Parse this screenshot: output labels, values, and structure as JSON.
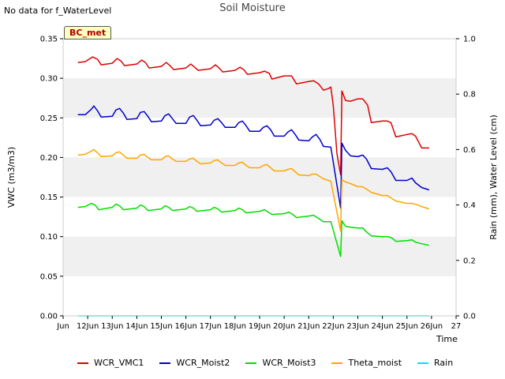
{
  "header": {
    "no_data_note": "No data for f_WaterLevel",
    "title": "Soil Moisture",
    "site_badge": "BC_met"
  },
  "chart_data": {
    "type": "line",
    "title": "Soil Moisture",
    "xlabel": "Time",
    "ylabel_left": "VWC (m3/m3)",
    "ylabel_right": "Rain (mm), Water Level (cm)",
    "ylim_left": [
      0,
      0.35
    ],
    "ylim_right": [
      0,
      1.0
    ],
    "xlim": [
      11,
      27
    ],
    "x_units": "day of June",
    "x_ticks": [
      11,
      12,
      13,
      14,
      15,
      16,
      17,
      18,
      19,
      20,
      21,
      22,
      23,
      24,
      25,
      26,
      27
    ],
    "x_tick_labels": [
      "Jun 11",
      "Jun 12",
      "Jun 13",
      "Jun 14",
      "Jun 15",
      "Jun 16",
      "Jun 17",
      "Jun 18",
      "Jun 19",
      "Jun 20",
      "Jun 21",
      "Jun 22",
      "Jun 23",
      "Jun 24",
      "Jun 25",
      "Jun 26",
      "Jun 27"
    ],
    "x_tick_display": [
      "Jun",
      "12Jun",
      "13Jun",
      "14Jun",
      "15Jun",
      "16Jun",
      "17Jun",
      "18Jun",
      "19Jun",
      "20Jun",
      "21Jun",
      "22Jun",
      "23Jun",
      "24Jun",
      "25Jun",
      "26Jun",
      "27"
    ],
    "y_ticks_left": [
      0.0,
      0.05,
      0.1,
      0.15,
      0.2,
      0.25,
      0.3,
      0.35
    ],
    "y_tick_labels_left": [
      "0.00",
      "0.05",
      "0.10",
      "0.15",
      "0.20",
      "0.25",
      "0.30",
      "0.35"
    ],
    "y_ticks_right": [
      0.0,
      0.2,
      0.4,
      0.6,
      0.8,
      1.0
    ],
    "y_tick_labels_right": [
      "0.0",
      "0.2",
      "0.4",
      "0.6",
      "0.8",
      "1.0"
    ],
    "grid_bands": true,
    "legend_position": "bottom-center",
    "series": [
      {
        "name": "WCR_VMC1",
        "color": "#dd0000",
        "axis": "left",
        "points": [
          [
            11.6,
            0.32
          ],
          [
            11.9,
            0.321
          ],
          [
            12.2,
            0.327
          ],
          [
            12.4,
            0.324
          ],
          [
            12.55,
            0.317
          ],
          [
            13.0,
            0.319
          ],
          [
            13.2,
            0.325
          ],
          [
            13.35,
            0.322
          ],
          [
            13.5,
            0.316
          ],
          [
            14.0,
            0.318
          ],
          [
            14.2,
            0.323
          ],
          [
            14.35,
            0.32
          ],
          [
            14.5,
            0.313
          ],
          [
            15.0,
            0.315
          ],
          [
            15.2,
            0.32
          ],
          [
            15.35,
            0.316
          ],
          [
            15.5,
            0.311
          ],
          [
            16.0,
            0.313
          ],
          [
            16.2,
            0.318
          ],
          [
            16.35,
            0.314
          ],
          [
            16.5,
            0.31
          ],
          [
            17.0,
            0.312
          ],
          [
            17.2,
            0.317
          ],
          [
            17.35,
            0.313
          ],
          [
            17.5,
            0.308
          ],
          [
            18.0,
            0.31
          ],
          [
            18.2,
            0.314
          ],
          [
            18.35,
            0.311
          ],
          [
            18.5,
            0.305
          ],
          [
            19.0,
            0.307
          ],
          [
            19.2,
            0.309
          ],
          [
            19.4,
            0.306
          ],
          [
            19.5,
            0.299
          ],
          [
            20.0,
            0.303
          ],
          [
            20.3,
            0.303
          ],
          [
            20.5,
            0.293
          ],
          [
            21.0,
            0.296
          ],
          [
            21.2,
            0.297
          ],
          [
            21.4,
            0.293
          ],
          [
            21.6,
            0.285
          ],
          [
            21.8,
            0.287
          ],
          [
            21.9,
            0.289
          ],
          [
            22.0,
            0.265
          ],
          [
            22.15,
            0.205
          ],
          [
            22.3,
            0.178
          ],
          [
            22.35,
            0.284
          ],
          [
            22.5,
            0.272
          ],
          [
            22.7,
            0.271
          ],
          [
            23.0,
            0.274
          ],
          [
            23.2,
            0.274
          ],
          [
            23.4,
            0.266
          ],
          [
            23.55,
            0.244
          ],
          [
            24.0,
            0.246
          ],
          [
            24.2,
            0.246
          ],
          [
            24.35,
            0.244
          ],
          [
            24.55,
            0.226
          ],
          [
            25.0,
            0.229
          ],
          [
            25.2,
            0.23
          ],
          [
            25.35,
            0.227
          ],
          [
            25.6,
            0.212
          ],
          [
            25.9,
            0.212
          ]
        ]
      },
      {
        "name": "WCR_Moist2",
        "color": "#0000cc",
        "axis": "left",
        "points": [
          [
            11.6,
            0.254
          ],
          [
            11.9,
            0.254
          ],
          [
            12.15,
            0.261
          ],
          [
            12.25,
            0.265
          ],
          [
            12.4,
            0.259
          ],
          [
            12.55,
            0.251
          ],
          [
            13.0,
            0.252
          ],
          [
            13.15,
            0.26
          ],
          [
            13.3,
            0.262
          ],
          [
            13.45,
            0.256
          ],
          [
            13.6,
            0.248
          ],
          [
            14.0,
            0.249
          ],
          [
            14.15,
            0.257
          ],
          [
            14.3,
            0.258
          ],
          [
            14.45,
            0.252
          ],
          [
            14.6,
            0.245
          ],
          [
            15.0,
            0.246
          ],
          [
            15.15,
            0.253
          ],
          [
            15.3,
            0.255
          ],
          [
            15.45,
            0.249
          ],
          [
            15.6,
            0.243
          ],
          [
            16.0,
            0.243
          ],
          [
            16.15,
            0.251
          ],
          [
            16.3,
            0.253
          ],
          [
            16.45,
            0.247
          ],
          [
            16.6,
            0.24
          ],
          [
            17.0,
            0.241
          ],
          [
            17.15,
            0.247
          ],
          [
            17.3,
            0.249
          ],
          [
            17.45,
            0.244
          ],
          [
            17.6,
            0.238
          ],
          [
            18.0,
            0.238
          ],
          [
            18.15,
            0.244
          ],
          [
            18.3,
            0.246
          ],
          [
            18.45,
            0.24
          ],
          [
            18.6,
            0.233
          ],
          [
            19.0,
            0.233
          ],
          [
            19.15,
            0.238
          ],
          [
            19.3,
            0.24
          ],
          [
            19.45,
            0.235
          ],
          [
            19.6,
            0.227
          ],
          [
            20.0,
            0.227
          ],
          [
            20.15,
            0.232
          ],
          [
            20.3,
            0.235
          ],
          [
            20.45,
            0.229
          ],
          [
            20.6,
            0.222
          ],
          [
            21.0,
            0.221
          ],
          [
            21.15,
            0.226
          ],
          [
            21.3,
            0.229
          ],
          [
            21.45,
            0.223
          ],
          [
            21.6,
            0.214
          ],
          [
            21.9,
            0.213
          ],
          [
            22.3,
            0.136
          ],
          [
            22.35,
            0.218
          ],
          [
            22.5,
            0.209
          ],
          [
            22.7,
            0.202
          ],
          [
            23.0,
            0.201
          ],
          [
            23.2,
            0.203
          ],
          [
            23.35,
            0.198
          ],
          [
            23.55,
            0.186
          ],
          [
            24.0,
            0.185
          ],
          [
            24.2,
            0.187
          ],
          [
            24.35,
            0.182
          ],
          [
            24.55,
            0.171
          ],
          [
            25.0,
            0.171
          ],
          [
            25.2,
            0.174
          ],
          [
            25.35,
            0.168
          ],
          [
            25.6,
            0.162
          ],
          [
            25.9,
            0.159
          ]
        ]
      },
      {
        "name": "WCR_Moist3",
        "color": "#00dd00",
        "axis": "left",
        "points": [
          [
            11.6,
            0.137
          ],
          [
            11.9,
            0.138
          ],
          [
            12.15,
            0.142
          ],
          [
            12.3,
            0.14
          ],
          [
            12.45,
            0.134
          ],
          [
            13.0,
            0.137
          ],
          [
            13.15,
            0.141
          ],
          [
            13.3,
            0.139
          ],
          [
            13.45,
            0.134
          ],
          [
            14.0,
            0.136
          ],
          [
            14.15,
            0.14
          ],
          [
            14.3,
            0.138
          ],
          [
            14.45,
            0.133
          ],
          [
            15.0,
            0.135
          ],
          [
            15.15,
            0.139
          ],
          [
            15.3,
            0.137
          ],
          [
            15.45,
            0.133
          ],
          [
            16.0,
            0.135
          ],
          [
            16.15,
            0.138
          ],
          [
            16.3,
            0.136
          ],
          [
            16.45,
            0.132
          ],
          [
            17.0,
            0.134
          ],
          [
            17.15,
            0.137
          ],
          [
            17.3,
            0.135
          ],
          [
            17.45,
            0.131
          ],
          [
            18.0,
            0.133
          ],
          [
            18.15,
            0.136
          ],
          [
            18.3,
            0.134
          ],
          [
            18.45,
            0.13
          ],
          [
            19.0,
            0.132
          ],
          [
            19.2,
            0.134
          ],
          [
            19.35,
            0.131
          ],
          [
            19.5,
            0.128
          ],
          [
            20.0,
            0.129
          ],
          [
            20.2,
            0.131
          ],
          [
            20.35,
            0.128
          ],
          [
            20.5,
            0.124
          ],
          [
            21.0,
            0.126
          ],
          [
            21.2,
            0.127
          ],
          [
            21.35,
            0.124
          ],
          [
            21.6,
            0.119
          ],
          [
            21.9,
            0.119
          ],
          [
            22.3,
            0.075
          ],
          [
            22.35,
            0.12
          ],
          [
            22.5,
            0.113
          ],
          [
            22.7,
            0.112
          ],
          [
            23.0,
            0.111
          ],
          [
            23.2,
            0.111
          ],
          [
            23.35,
            0.106
          ],
          [
            23.55,
            0.101
          ],
          [
            24.0,
            0.1
          ],
          [
            24.25,
            0.1
          ],
          [
            24.4,
            0.098
          ],
          [
            24.55,
            0.094
          ],
          [
            25.0,
            0.095
          ],
          [
            25.2,
            0.096
          ],
          [
            25.35,
            0.093
          ],
          [
            25.6,
            0.091
          ],
          [
            25.9,
            0.089
          ]
        ]
      },
      {
        "name": "Theta_moist",
        "color": "#ffa500",
        "axis": "left",
        "points": [
          [
            11.6,
            0.203
          ],
          [
            11.9,
            0.204
          ],
          [
            12.15,
            0.208
          ],
          [
            12.25,
            0.21
          ],
          [
            12.4,
            0.206
          ],
          [
            12.55,
            0.201
          ],
          [
            13.0,
            0.202
          ],
          [
            13.15,
            0.206
          ],
          [
            13.3,
            0.207
          ],
          [
            13.45,
            0.203
          ],
          [
            13.6,
            0.199
          ],
          [
            14.0,
            0.199
          ],
          [
            14.15,
            0.203
          ],
          [
            14.3,
            0.204
          ],
          [
            14.45,
            0.2
          ],
          [
            14.6,
            0.197
          ],
          [
            15.0,
            0.197
          ],
          [
            15.15,
            0.201
          ],
          [
            15.3,
            0.202
          ],
          [
            15.45,
            0.198
          ],
          [
            15.6,
            0.195
          ],
          [
            16.0,
            0.195
          ],
          [
            16.15,
            0.198
          ],
          [
            16.3,
            0.199
          ],
          [
            16.45,
            0.195
          ],
          [
            16.6,
            0.192
          ],
          [
            17.0,
            0.193
          ],
          [
            17.15,
            0.196
          ],
          [
            17.3,
            0.197
          ],
          [
            17.45,
            0.193
          ],
          [
            17.6,
            0.19
          ],
          [
            18.0,
            0.19
          ],
          [
            18.15,
            0.193
          ],
          [
            18.3,
            0.194
          ],
          [
            18.45,
            0.19
          ],
          [
            18.6,
            0.187
          ],
          [
            19.0,
            0.187
          ],
          [
            19.15,
            0.19
          ],
          [
            19.3,
            0.191
          ],
          [
            19.45,
            0.187
          ],
          [
            19.6,
            0.183
          ],
          [
            20.0,
            0.183
          ],
          [
            20.15,
            0.185
          ],
          [
            20.3,
            0.186
          ],
          [
            20.45,
            0.182
          ],
          [
            20.6,
            0.178
          ],
          [
            21.0,
            0.177
          ],
          [
            21.15,
            0.179
          ],
          [
            21.3,
            0.179
          ],
          [
            21.45,
            0.176
          ],
          [
            21.6,
            0.173
          ],
          [
            21.9,
            0.17
          ],
          [
            22.3,
            0.107
          ],
          [
            22.35,
            0.172
          ],
          [
            22.5,
            0.169
          ],
          [
            22.7,
            0.167
          ],
          [
            23.0,
            0.163
          ],
          [
            23.2,
            0.163
          ],
          [
            23.35,
            0.16
          ],
          [
            23.55,
            0.156
          ],
          [
            24.0,
            0.152
          ],
          [
            24.2,
            0.152
          ],
          [
            24.35,
            0.149
          ],
          [
            24.55,
            0.145
          ],
          [
            25.0,
            0.142
          ],
          [
            25.2,
            0.142
          ],
          [
            25.35,
            0.141
          ],
          [
            25.6,
            0.138
          ],
          [
            25.9,
            0.135
          ]
        ]
      },
      {
        "name": "Rain",
        "color": "#00e5ee",
        "axis": "right",
        "points": [
          [
            11.6,
            0.0
          ],
          [
            25.9,
            0.0
          ]
        ]
      }
    ]
  }
}
